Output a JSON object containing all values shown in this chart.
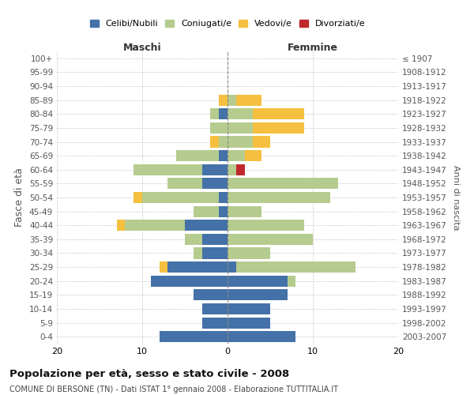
{
  "age_groups": [
    "0-4",
    "5-9",
    "10-14",
    "15-19",
    "20-24",
    "25-29",
    "30-34",
    "35-39",
    "40-44",
    "45-49",
    "50-54",
    "55-59",
    "60-64",
    "65-69",
    "70-74",
    "75-79",
    "80-84",
    "85-89",
    "90-94",
    "95-99",
    "100+"
  ],
  "birth_years": [
    "2003-2007",
    "1998-2002",
    "1993-1997",
    "1988-1992",
    "1983-1987",
    "1978-1982",
    "1973-1977",
    "1968-1972",
    "1963-1967",
    "1958-1962",
    "1953-1957",
    "1948-1952",
    "1943-1947",
    "1938-1942",
    "1933-1937",
    "1928-1932",
    "1923-1927",
    "1918-1922",
    "1913-1917",
    "1908-1912",
    "≤ 1907"
  ],
  "male": {
    "celibi": [
      8,
      3,
      3,
      4,
      9,
      7,
      3,
      3,
      5,
      1,
      1,
      3,
      3,
      1,
      0,
      0,
      1,
      0,
      0,
      0,
      0
    ],
    "coniugati": [
      0,
      0,
      0,
      0,
      0,
      0,
      1,
      2,
      7,
      3,
      9,
      4,
      8,
      5,
      1,
      2,
      1,
      0,
      0,
      0,
      0
    ],
    "vedovi": [
      0,
      0,
      0,
      0,
      0,
      1,
      0,
      0,
      1,
      0,
      1,
      0,
      0,
      0,
      1,
      0,
      0,
      1,
      0,
      0,
      0
    ],
    "divorziati": [
      0,
      0,
      0,
      0,
      0,
      0,
      0,
      0,
      0,
      0,
      0,
      0,
      0,
      0,
      0,
      0,
      0,
      0,
      0,
      0,
      0
    ]
  },
  "female": {
    "nubili": [
      8,
      5,
      5,
      7,
      7,
      1,
      0,
      0,
      0,
      0,
      0,
      0,
      0,
      0,
      0,
      0,
      0,
      0,
      0,
      0,
      0
    ],
    "coniugate": [
      0,
      0,
      0,
      0,
      1,
      14,
      5,
      10,
      9,
      4,
      12,
      13,
      1,
      2,
      3,
      3,
      3,
      1,
      0,
      0,
      0
    ],
    "vedove": [
      0,
      0,
      0,
      0,
      0,
      0,
      0,
      0,
      0,
      0,
      0,
      0,
      0,
      2,
      2,
      6,
      6,
      3,
      0,
      0,
      0
    ],
    "divorziate": [
      0,
      0,
      0,
      0,
      0,
      0,
      0,
      0,
      0,
      0,
      0,
      0,
      1,
      0,
      0,
      0,
      0,
      0,
      0,
      0,
      0
    ]
  },
  "colors": {
    "celibi_nubili": "#4472a8",
    "coniugati": "#b5cc8e",
    "vedovi": "#f5c040",
    "divorziati": "#c0282c"
  },
  "xlim": 20,
  "title": "Popolazione per età, sesso e stato civile - 2008",
  "subtitle": "COMUNE DI BERSONE (TN) - Dati ISTAT 1° gennaio 2008 - Elaborazione TUTTITALIA.IT",
  "ylabel_left": "Fasce di età",
  "ylabel_right": "Anni di nascita"
}
